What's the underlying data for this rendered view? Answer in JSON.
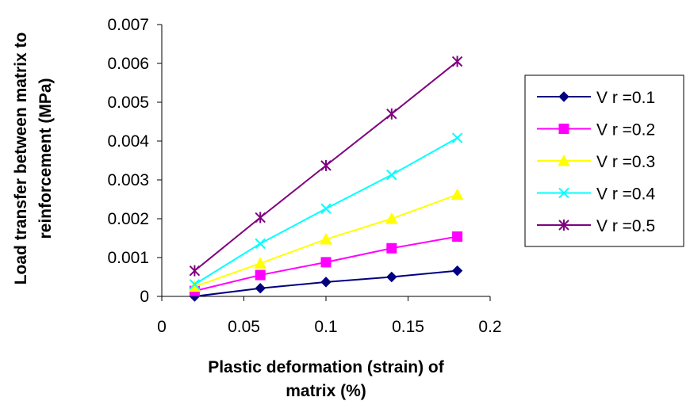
{
  "chart_data": {
    "type": "line",
    "xlabel": [
      "Plastic deformation (strain) of",
      "matrix (%)"
    ],
    "ylabel": [
      "Load transfer between matrix to",
      "reinforcement (MPa)"
    ],
    "xlim": [
      0,
      0.2
    ],
    "ylim": [
      0,
      0.007
    ],
    "x_ticks": [
      0,
      0.05,
      0.1,
      0.15,
      0.2
    ],
    "x_tick_labels": [
      "0",
      "0.05",
      "0.1",
      "0.15",
      "0.2"
    ],
    "y_ticks": [
      0,
      0.001,
      0.002,
      0.003,
      0.004,
      0.005,
      0.006,
      0.007
    ],
    "y_tick_labels": [
      "0",
      "0.001",
      "0.002",
      "0.003",
      "0.004",
      "0.005",
      "0.006",
      "0.007"
    ],
    "grid": false,
    "legend_position": "right",
    "x": [
      0.02,
      0.06,
      0.1,
      0.14,
      0.18
    ],
    "series": [
      {
        "name": "V r =0.1",
        "color": "#000080",
        "marker": "diamond",
        "values": [
          0.0,
          0.00021,
          0.00037,
          0.0005,
          0.00066
        ]
      },
      {
        "name": "V r =0.2",
        "color": "#FF00FF",
        "marker": "square",
        "values": [
          0.00014,
          0.00055,
          0.00088,
          0.00124,
          0.00154
        ]
      },
      {
        "name": "V r =0.3",
        "color": "#FFFF00",
        "marker": "triangle",
        "values": [
          0.00025,
          0.00085,
          0.00147,
          0.002,
          0.00262
        ]
      },
      {
        "name": "V r =0.4",
        "color": "#00FFFF",
        "marker": "x",
        "values": [
          0.00031,
          0.00136,
          0.00226,
          0.00313,
          0.00408
        ]
      },
      {
        "name": "V r =0.5",
        "color": "#800080",
        "marker": "star",
        "values": [
          0.00066,
          0.00203,
          0.00337,
          0.0047,
          0.00605
        ]
      }
    ]
  }
}
